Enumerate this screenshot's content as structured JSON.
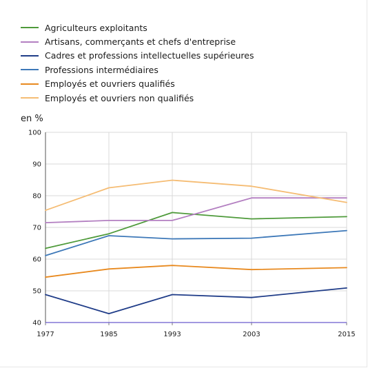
{
  "chart_data": {
    "type": "line",
    "x": [
      1977,
      1985,
      1993,
      2003,
      2015
    ],
    "ylabel": "en %",
    "ylim": [
      40,
      100
    ],
    "yticks": [
      40,
      50,
      60,
      70,
      80,
      90,
      100
    ],
    "grid": true,
    "legend_position": "top-left",
    "series": [
      {
        "name": "Agriculteurs exploitants",
        "color": "#4e9a3a",
        "values": [
          63.4,
          68.0,
          74.7,
          72.7,
          73.4
        ]
      },
      {
        "name": "Artisans, commerçants et chefs d'entreprise",
        "color": "#b37fc1",
        "values": [
          71.5,
          72.2,
          72.2,
          79.3,
          79.3
        ]
      },
      {
        "name": "Cadres et professions intellectuelles supérieures",
        "color": "#1f3c88",
        "values": [
          48.8,
          42.8,
          48.8,
          47.9,
          50.9
        ]
      },
      {
        "name": "Professions intermédiaires",
        "color": "#3d78b8",
        "values": [
          61.1,
          67.4,
          66.4,
          66.6,
          69.0
        ]
      },
      {
        "name": "Employés et ouvriers qualifiés",
        "color": "#e8891e",
        "values": [
          54.3,
          56.9,
          58.0,
          56.7,
          57.3
        ]
      },
      {
        "name": "Employés et ouvriers non qualifiés",
        "color": "#f5bc73",
        "values": [
          75.4,
          82.5,
          84.9,
          83.0,
          77.9
        ]
      }
    ]
  }
}
